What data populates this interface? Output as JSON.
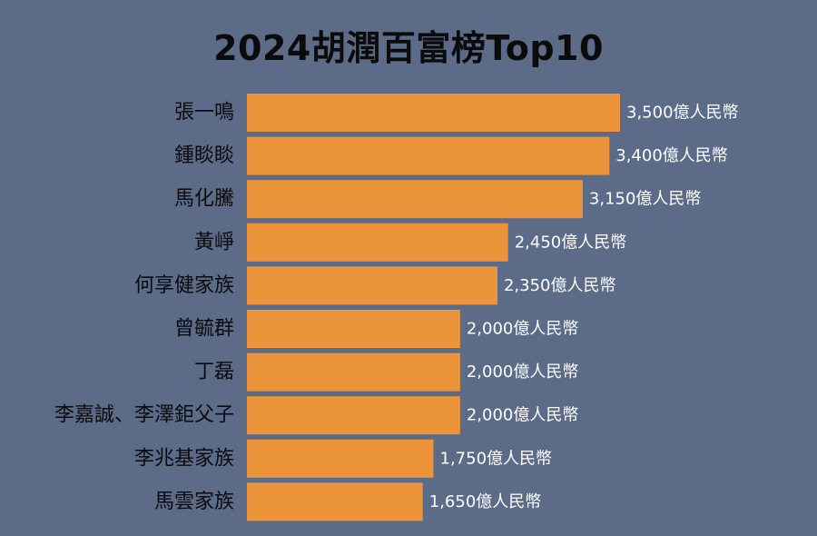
{
  "colors": {
    "background": "#5b6b88",
    "bar": "#ec943a",
    "title_text": "#0b0b0b",
    "category_text": "#0b0b0b",
    "value_text": "#ffffff"
  },
  "chart_data": {
    "type": "bar",
    "orientation": "horizontal",
    "title": "2024胡潤百富榜Top10",
    "xlabel": "",
    "ylabel": "",
    "xlim": [
      0,
      3500
    ],
    "value_unit": "億人民幣",
    "grid": false,
    "legend": "none",
    "categories": [
      "張一鳴",
      "鍾睒睒",
      "馬化騰",
      "黃崢",
      "何享健家族",
      "曾毓群",
      "丁磊",
      "李嘉誠、李澤鉅父子",
      "李兆基家族",
      "馬雲家族"
    ],
    "values": [
      3500,
      3400,
      3150,
      2450,
      2350,
      2000,
      2000,
      2000,
      1750,
      1650
    ],
    "value_labels": [
      "3,500億人民幣",
      "3,400億人民幣",
      "3,150億人民幣",
      "2,450億人民幣",
      "2,350億人民幣",
      "2,000億人民幣",
      "2,000億人民幣",
      "2,000億人民幣",
      "1,750億人民幣",
      "1,650億人民幣"
    ]
  }
}
